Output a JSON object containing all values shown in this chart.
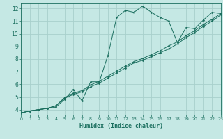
{
  "xlabel": "Humidex (Indice chaleur)",
  "bg_color": "#c5e8e4",
  "grid_color": "#a8d0cc",
  "line_color": "#1a6e5e",
  "xlim": [
    0,
    23
  ],
  "ylim": [
    3.6,
    12.4
  ],
  "xticks": [
    0,
    1,
    2,
    3,
    4,
    5,
    6,
    7,
    8,
    9,
    10,
    11,
    12,
    13,
    14,
    15,
    16,
    17,
    18,
    19,
    20,
    21,
    22,
    23
  ],
  "yticks": [
    4,
    5,
    6,
    7,
    8,
    9,
    10,
    11,
    12
  ],
  "curve1_x": [
    0,
    1,
    2,
    3,
    4,
    5,
    6,
    7,
    8,
    9,
    10,
    11,
    12,
    13,
    14,
    15,
    16,
    17,
    18,
    19,
    20,
    21,
    22,
    23
  ],
  "curve1_y": [
    3.75,
    3.9,
    4.0,
    4.1,
    4.2,
    4.8,
    5.6,
    4.7,
    6.2,
    6.2,
    8.3,
    11.3,
    11.85,
    11.7,
    12.2,
    11.7,
    11.3,
    11.0,
    9.3,
    10.5,
    10.4,
    11.1,
    11.7,
    11.6
  ],
  "curve2_x": [
    0,
    1,
    2,
    3,
    4,
    5,
    6,
    7,
    8,
    9,
    10,
    11,
    12,
    13,
    14,
    15,
    16,
    17,
    18,
    19,
    20,
    21,
    22,
    23
  ],
  "curve2_y": [
    3.75,
    3.9,
    4.0,
    4.1,
    4.3,
    4.95,
    5.3,
    5.5,
    5.95,
    6.25,
    6.65,
    7.05,
    7.45,
    7.8,
    8.05,
    8.35,
    8.65,
    9.05,
    9.35,
    9.85,
    10.25,
    10.75,
    11.15,
    11.6
  ],
  "curve3_x": [
    0,
    1,
    2,
    3,
    4,
    5,
    6,
    7,
    8,
    9,
    10,
    11,
    12,
    13,
    14,
    15,
    16,
    17,
    18,
    19,
    20,
    21,
    22,
    23
  ],
  "curve3_y": [
    3.75,
    3.9,
    4.0,
    4.1,
    4.3,
    4.9,
    5.2,
    5.4,
    5.8,
    6.1,
    6.5,
    6.9,
    7.3,
    7.7,
    7.9,
    8.2,
    8.5,
    8.8,
    9.2,
    9.7,
    10.1,
    10.6,
    11.0,
    11.5
  ]
}
